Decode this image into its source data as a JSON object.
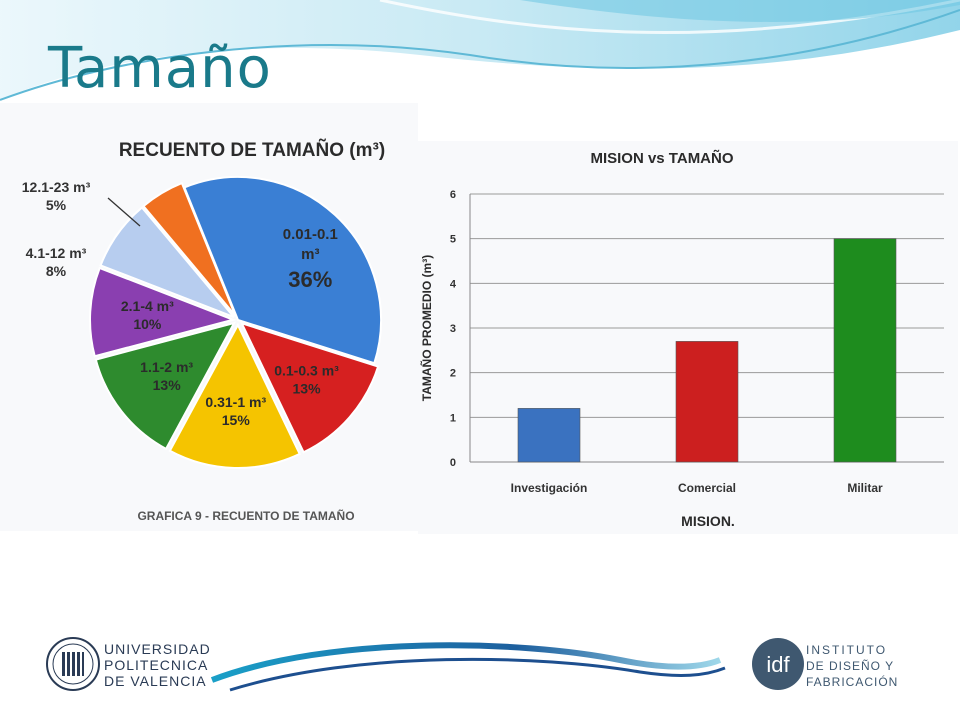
{
  "slide": {
    "title": "Tamaño"
  },
  "pie_chart": {
    "title": "RECUENTO DE TAMAÑO (m³)",
    "caption": "GRAFICA 9 - RECUENTO DE TAMAÑO"
  },
  "bar_chart": {
    "title": "MISION vs TAMAÑO",
    "xlabel": "MISION.",
    "ylabel": "TAMAÑO PROMEDIO (m³)"
  },
  "logos": {
    "upv": [
      "UNIVERSIDAD",
      "POLITECNICA",
      "DE VALENCIA"
    ],
    "idf_mark": "idf",
    "idf": [
      "INSTITUTO",
      "DE DISEÑO Y",
      "FABRICACIÓN"
    ]
  },
  "colors": {
    "title": "#1a7a8a",
    "pie": [
      "#3a7fd4",
      "#d62020",
      "#f5c400",
      "#2e8b2e",
      "#8a3fb0",
      "#b7cdef",
      "#f07020"
    ],
    "bars": [
      "#3a72c0",
      "#cc1f1f",
      "#1e8c1e"
    ]
  },
  "chart_data": [
    {
      "type": "pie",
      "title": "RECUENTO DE TAMAÑO (m³)",
      "slices": [
        {
          "label": "0.01-0.1 m³",
          "value": 36,
          "pct_label": "36%"
        },
        {
          "label": "0.1-0.3 m³",
          "value": 13,
          "pct_label": "13%"
        },
        {
          "label": "0.31-1 m³",
          "value": 15,
          "pct_label": "15%"
        },
        {
          "label": "1.1-2 m³",
          "value": 13,
          "pct_label": "13%"
        },
        {
          "label": "2.1-4 m³",
          "value": 10,
          "pct_label": "10%"
        },
        {
          "label": "4.1-12 m³",
          "value": 8,
          "pct_label": "8%"
        },
        {
          "label": "12.1-23 m³",
          "value": 5,
          "pct_label": "5%"
        }
      ]
    },
    {
      "type": "bar",
      "title": "MISION vs TAMAÑO",
      "categories": [
        "Investigación",
        "Comercial",
        "Militar"
      ],
      "values": [
        1.2,
        2.7,
        5.0
      ],
      "xlabel": "MISION.",
      "ylabel": "TAMAÑO PROMEDIO (m³)",
      "ylim": [
        0,
        6
      ],
      "yticks": [
        0,
        1,
        2,
        3,
        4,
        5,
        6
      ],
      "grid": true
    }
  ]
}
